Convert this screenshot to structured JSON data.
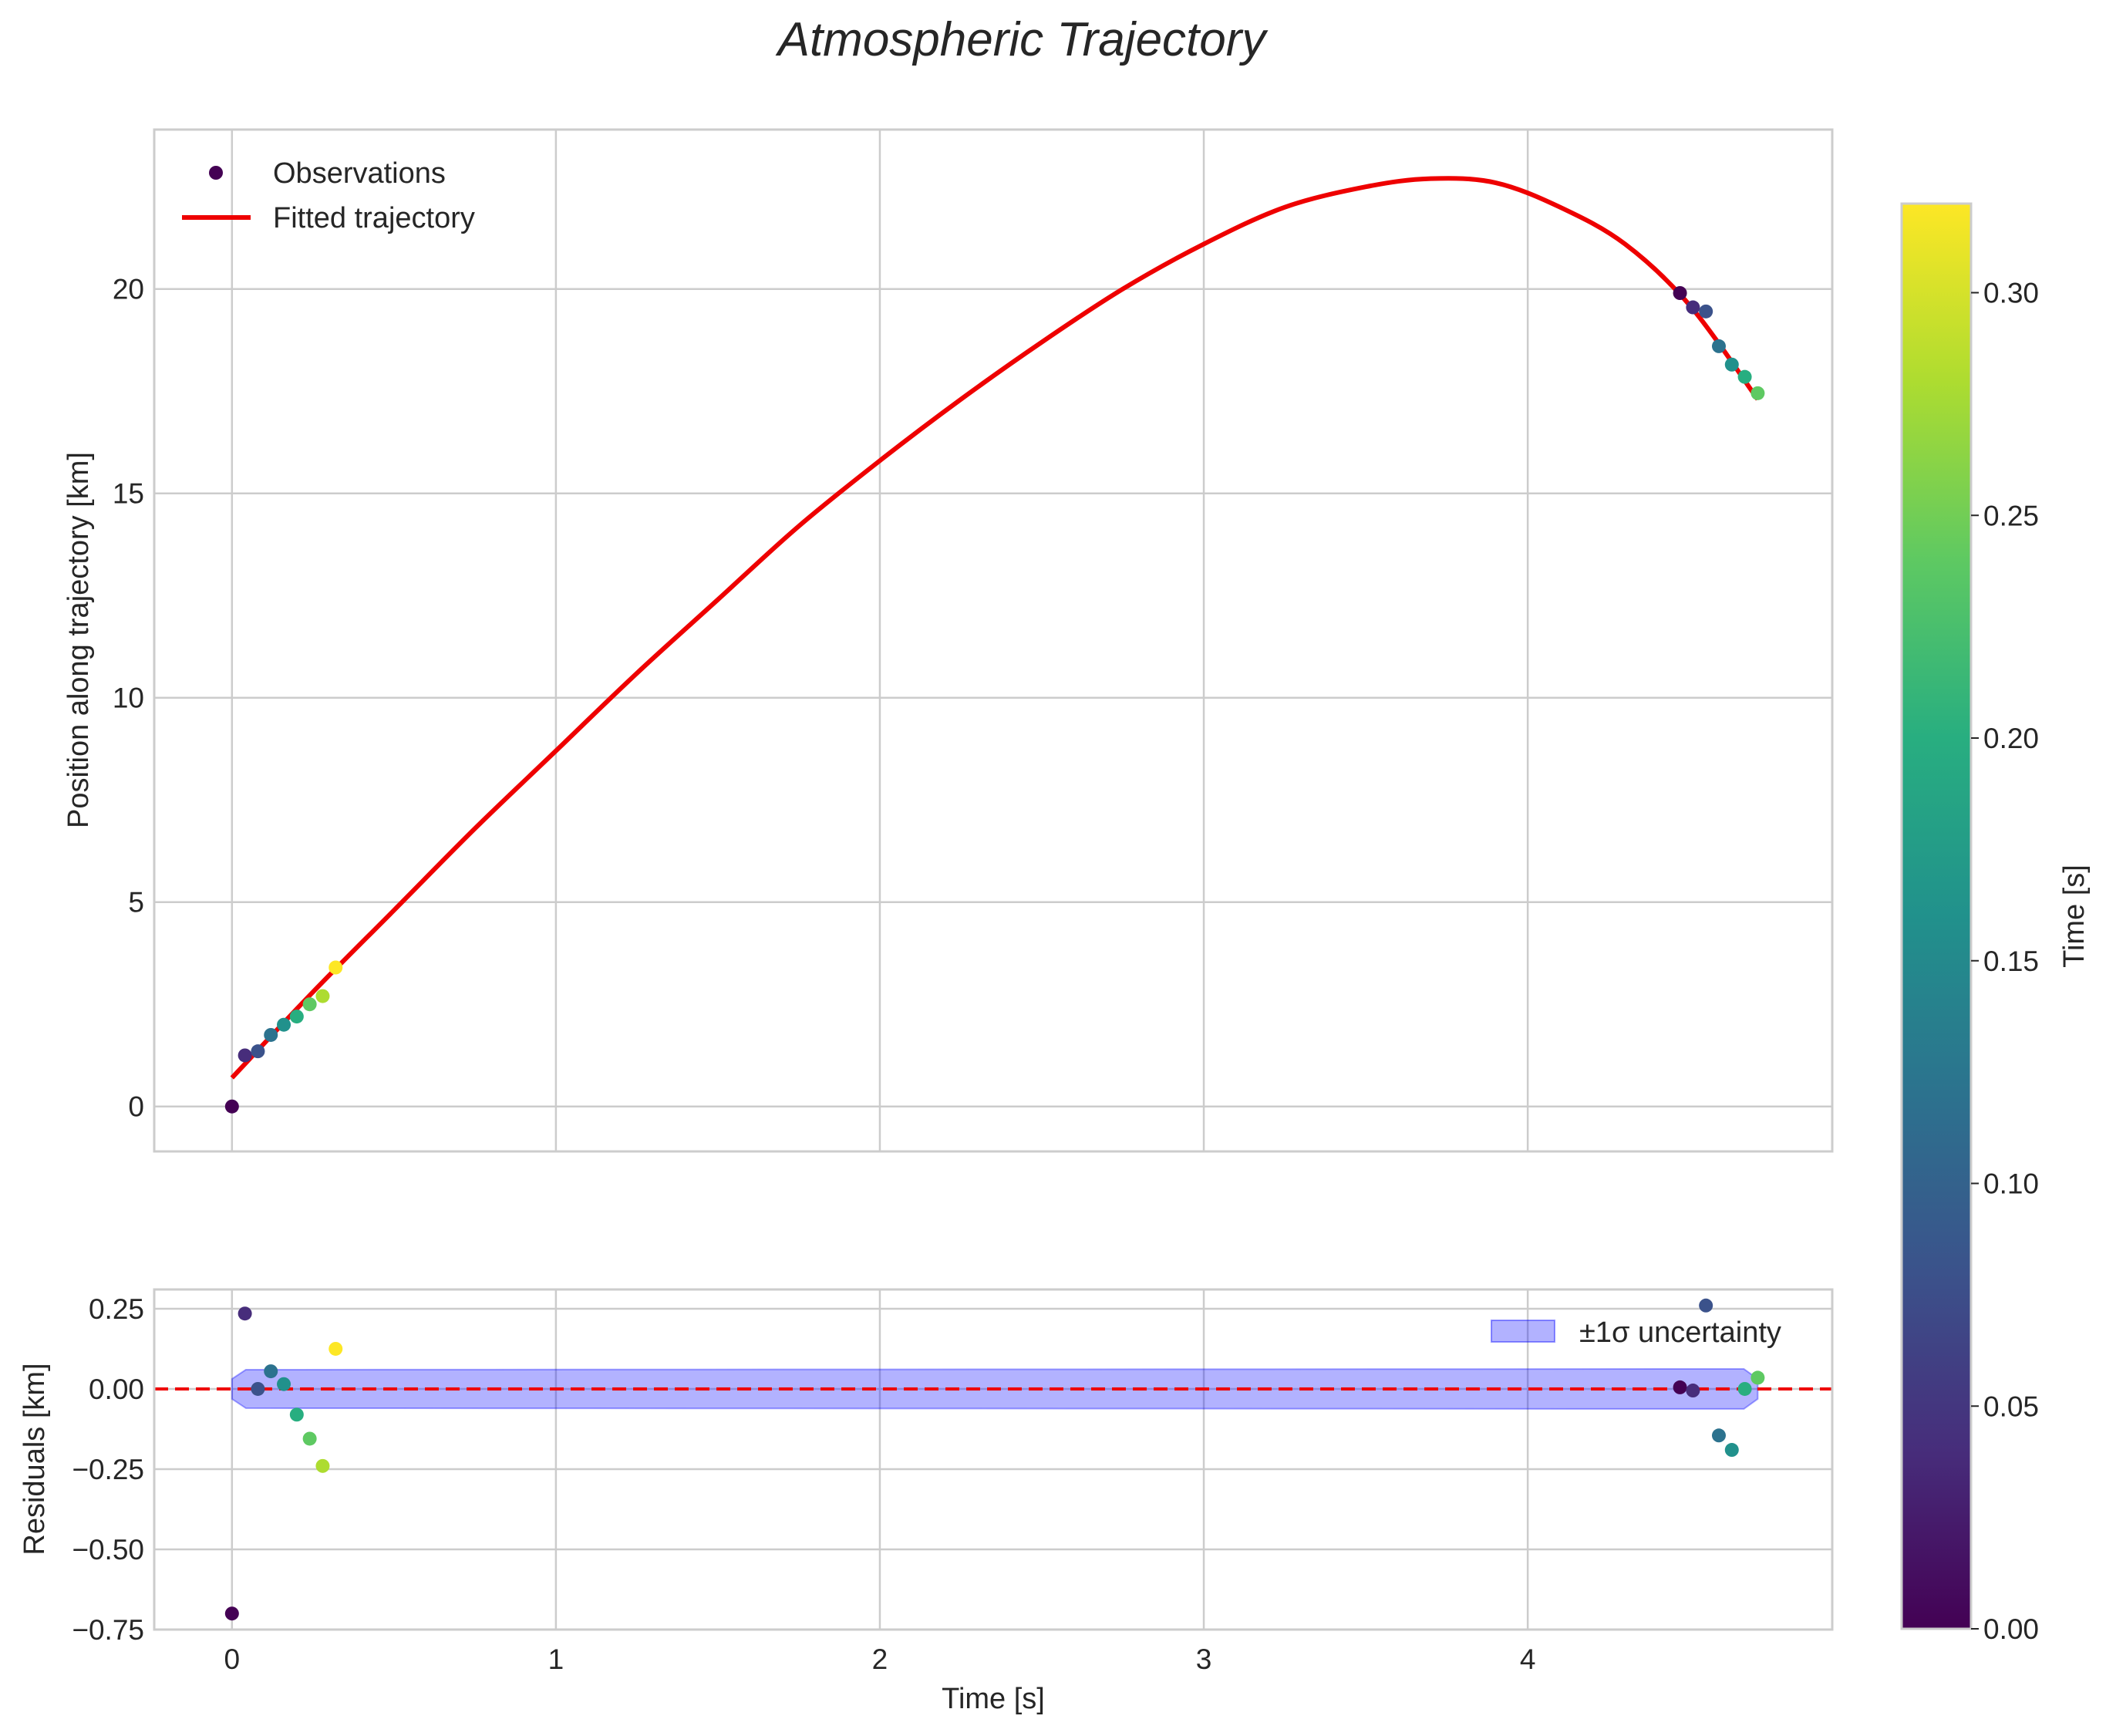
{
  "chart_data": {
    "title": "Atmospheric Trajectory",
    "colorbar": {
      "label": "Time [s]",
      "range": [
        0.0,
        0.32
      ],
      "ticks": [
        "0.00",
        "0.05",
        "0.10",
        "0.15",
        "0.20",
        "0.25",
        "0.30"
      ],
      "colormap": "viridis"
    },
    "charts": [
      {
        "name": "trajectory",
        "type": "scatter+line",
        "xlabel": "",
        "ylabel": "Position along trajectory [km]",
        "xlim": [
          -0.24,
          4.94
        ],
        "ylim": [
          -1.1,
          23.9
        ],
        "xticks": [
          0,
          1,
          2,
          3,
          4
        ],
        "xtick_labels": [
          "0",
          "1",
          "2",
          "3",
          "4"
        ],
        "yticks": [
          0,
          5,
          10,
          15,
          20
        ],
        "ytick_labels": [
          "0",
          "5",
          "10",
          "15",
          "20"
        ],
        "legend": [
          "Observations",
          "Fitted trajectory"
        ],
        "legend_position": "upper-left",
        "observations": [
          {
            "t": 0.0,
            "y": 0.0,
            "c": 0.0
          },
          {
            "t": 0.04,
            "y": 1.25,
            "c": 0.04
          },
          {
            "t": 0.08,
            "y": 1.35,
            "c": 0.08
          },
          {
            "t": 0.12,
            "y": 1.75,
            "c": 0.12
          },
          {
            "t": 0.16,
            "y": 2.0,
            "c": 0.16
          },
          {
            "t": 0.2,
            "y": 2.2,
            "c": 0.2
          },
          {
            "t": 0.24,
            "y": 2.5,
            "c": 0.24
          },
          {
            "t": 0.28,
            "y": 2.7,
            "c": 0.28
          },
          {
            "t": 0.32,
            "y": 3.4,
            "c": 0.32
          },
          {
            "t": 4.47,
            "y": 19.9,
            "c": 0.0
          },
          {
            "t": 4.51,
            "y": 19.55,
            "c": 0.04
          },
          {
            "t": 4.55,
            "y": 19.45,
            "c": 0.08
          },
          {
            "t": 4.59,
            "y": 18.6,
            "c": 0.12
          },
          {
            "t": 4.63,
            "y": 18.15,
            "c": 0.16
          },
          {
            "t": 4.67,
            "y": 17.85,
            "c": 0.2
          },
          {
            "t": 4.71,
            "y": 17.45,
            "c": 0.24
          }
        ],
        "fit": {
          "t": [
            0.0,
            0.25,
            0.5,
            0.75,
            1.0,
            1.25,
            1.5,
            1.75,
            2.0,
            2.25,
            2.5,
            2.75,
            3.0,
            3.25,
            3.5,
            3.7,
            3.9,
            4.1,
            4.3,
            4.5,
            4.71
          ],
          "y": [
            0.7,
            2.8,
            4.8,
            6.8,
            8.7,
            10.6,
            12.4,
            14.2,
            15.8,
            17.3,
            18.7,
            20.0,
            21.1,
            22.0,
            22.5,
            22.7,
            22.6,
            22.0,
            21.1,
            19.6,
            17.3
          ]
        }
      },
      {
        "name": "residuals",
        "type": "scatter",
        "xlabel": "Time [s]",
        "ylabel": "Residuals [km]",
        "xlim": [
          -0.24,
          4.94
        ],
        "ylim": [
          -0.75,
          0.31
        ],
        "xticks": [
          0,
          1,
          2,
          3,
          4
        ],
        "xtick_labels": [
          "0",
          "1",
          "2",
          "3",
          "4"
        ],
        "yticks": [
          0.25,
          0.0,
          -0.25,
          -0.5,
          -0.75
        ],
        "ytick_labels": [
          "0.25",
          "0.00",
          "−0.25",
          "−0.50",
          "−0.75"
        ],
        "legend": [
          "±1σ uncertainty"
        ],
        "legend_position": "upper-right",
        "zero_line": 0.0,
        "band": {
          "t_start": 0.0,
          "t_end": 4.71,
          "sigma": 0.06
        },
        "points": [
          {
            "t": 0.0,
            "r": -0.7,
            "c": 0.0
          },
          {
            "t": 0.04,
            "r": 0.235,
            "c": 0.04
          },
          {
            "t": 0.08,
            "r": 0.0,
            "c": 0.08
          },
          {
            "t": 0.12,
            "r": 0.055,
            "c": 0.12
          },
          {
            "t": 0.16,
            "r": 0.015,
            "c": 0.16
          },
          {
            "t": 0.2,
            "r": -0.08,
            "c": 0.2
          },
          {
            "t": 0.24,
            "r": -0.155,
            "c": 0.24
          },
          {
            "t": 0.28,
            "r": -0.24,
            "c": 0.28
          },
          {
            "t": 0.32,
            "r": 0.125,
            "c": 0.32
          },
          {
            "t": 4.47,
            "r": 0.005,
            "c": 0.0
          },
          {
            "t": 4.51,
            "r": -0.005,
            "c": 0.04
          },
          {
            "t": 4.55,
            "r": 0.26,
            "c": 0.08
          },
          {
            "t": 4.59,
            "r": -0.145,
            "c": 0.12
          },
          {
            "t": 4.63,
            "r": -0.19,
            "c": 0.16
          },
          {
            "t": 4.67,
            "r": 0.0,
            "c": 0.2
          },
          {
            "t": 4.71,
            "r": 0.035,
            "c": 0.24
          }
        ]
      }
    ]
  }
}
